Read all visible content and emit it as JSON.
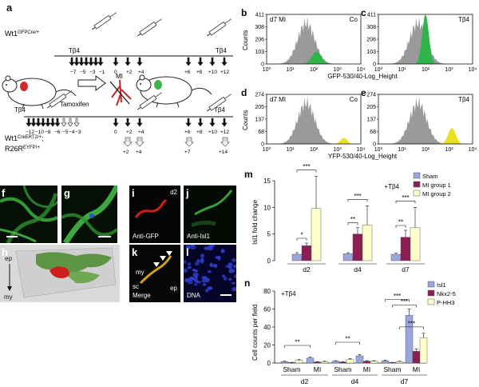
{
  "panel_a": {
    "label": "a",
    "top_genotype": "Wt1GFPCre/+",
    "top_genotype_sup": "GFPCre/+",
    "tb4": "Tβ4",
    "top_days_pre": [
      "−7",
      "−5",
      "−3",
      "−1"
    ],
    "top_days_post": [
      "0",
      "+2",
      "+4"
    ],
    "top_days_late": [
      "+6",
      "+8",
      "+10",
      "+12"
    ],
    "mi": "MI",
    "tamoxifen": "Tamoxifen",
    "bot_days_pre": [
      "−12",
      "−10",
      "−8",
      "−6",
      "−5",
      "−4",
      "−3"
    ],
    "bot_days_post": [
      "0",
      "+2",
      "+4"
    ],
    "bot_days_late": [
      "+6",
      "+8",
      "+10",
      "+12"
    ],
    "bot_harvest_early": [
      "+2",
      "+4"
    ],
    "bot_harvest_late": [
      "+7",
      "+14"
    ],
    "bottom_genotype_1": "Wt1CreERT2/+;",
    "bottom_genotype_2": "R26REYFP/+"
  },
  "flow_panels": {
    "b": {
      "label": "b",
      "left_text": "d7 MI",
      "right_text": "Co",
      "yticks": [
        "0",
        "103",
        "206",
        "308",
        "411"
      ],
      "top_tick": "411"
    },
    "c": {
      "label": "c",
      "right_text": "Tβ4",
      "yticks": [
        "0",
        "103",
        "206",
        "308",
        "411"
      ]
    },
    "d": {
      "label": "d",
      "left_text": "d7 MI",
      "right_text": "Co",
      "yticks": [
        "0",
        "68",
        "137",
        "205",
        "274"
      ]
    },
    "e": {
      "label": "e",
      "right_text": "Tβ4",
      "yticks": [
        "0",
        "68",
        "137",
        "205",
        "274"
      ]
    },
    "ylabel": "Counts",
    "xticks": [
      "10⁰",
      "10¹",
      "10²",
      "10³",
      "10⁴"
    ],
    "xlabel_gfp": "GFP-530/40-Log_Height",
    "xlabel_yfp": "YFP-530/40-Log_Height",
    "colors": {
      "gray": "#9a9a9a",
      "green": "#2fb34a",
      "yellow": "#e8e020"
    }
  },
  "micrographs": {
    "f": "f",
    "g": "g",
    "h": "h",
    "i": "i",
    "j": "j",
    "k": "k",
    "l": "l",
    "i_tag": "d2",
    "i_caption": "Anti-GFP",
    "j_caption": "Anti-Isl1",
    "k_caption": "Merge",
    "l_caption": "DNA",
    "h_ep": "ep",
    "h_my": "my",
    "k_my": "my",
    "k_sc": "sc",
    "k_ep": "ep"
  },
  "chart_data": [
    {
      "type": "bar",
      "panel": "m",
      "ylabel": "Isl1 fold change",
      "annotation": "+Tβ4",
      "categories": [
        "d2",
        "d4",
        "d7"
      ],
      "ylim": [
        0,
        15
      ],
      "yticks": [
        "0",
        "5",
        "10",
        "15"
      ],
      "series": [
        {
          "name": "Sham",
          "values": [
            1.2,
            1.3,
            1.2
          ],
          "errors": [
            0.3,
            0.2,
            0.2
          ],
          "color": "#9aa6dc"
        },
        {
          "name": "MI group 1",
          "values": [
            2.8,
            5.0,
            4.4
          ],
          "errors": [
            0.5,
            1.2,
            1.3
          ],
          "color": "#8b1e55"
        },
        {
          "name": "MI group 2",
          "values": [
            9.8,
            6.7,
            6.2
          ],
          "errors": [
            6.0,
            3.6,
            3.8
          ],
          "color": "#ffffcc"
        }
      ],
      "significance": [
        "*",
        "***",
        "**",
        "***",
        "**",
        "***"
      ]
    },
    {
      "type": "bar",
      "panel": "n",
      "ylabel": "Cell counts per field",
      "annotation": "+Tβ4",
      "groups": [
        "d2",
        "d4",
        "d7"
      ],
      "categories": [
        "Sham",
        "MI",
        "Sham",
        "MI",
        "Sham",
        "MI"
      ],
      "ylim": [
        0,
        80
      ],
      "yticks": [
        "0",
        "20",
        "40",
        "60",
        "80"
      ],
      "series": [
        {
          "name": "Isl1",
          "values": [
            1.5,
            5.5,
            2.0,
            8.0,
            2.5,
            53
          ],
          "errors": [
            0.5,
            1.0,
            0.6,
            1.5,
            0.8,
            7
          ],
          "color": "#9aa6dc"
        },
        {
          "name": "Nkx2-5",
          "values": [
            0.5,
            1.0,
            1.0,
            2.0,
            0.5,
            13
          ],
          "errors": [
            0.3,
            0.5,
            0.4,
            0.6,
            0.3,
            2.5
          ],
          "color": "#8b1e55"
        },
        {
          "name": "P-HH3",
          "values": [
            3.0,
            1.5,
            4.0,
            2.0,
            1.5,
            28
          ],
          "errors": [
            0.8,
            0.5,
            1.0,
            0.6,
            0.5,
            5
          ],
          "color": "#ffffcc"
        }
      ],
      "significance": [
        "**",
        "**",
        "***",
        "***",
        "***"
      ]
    }
  ]
}
